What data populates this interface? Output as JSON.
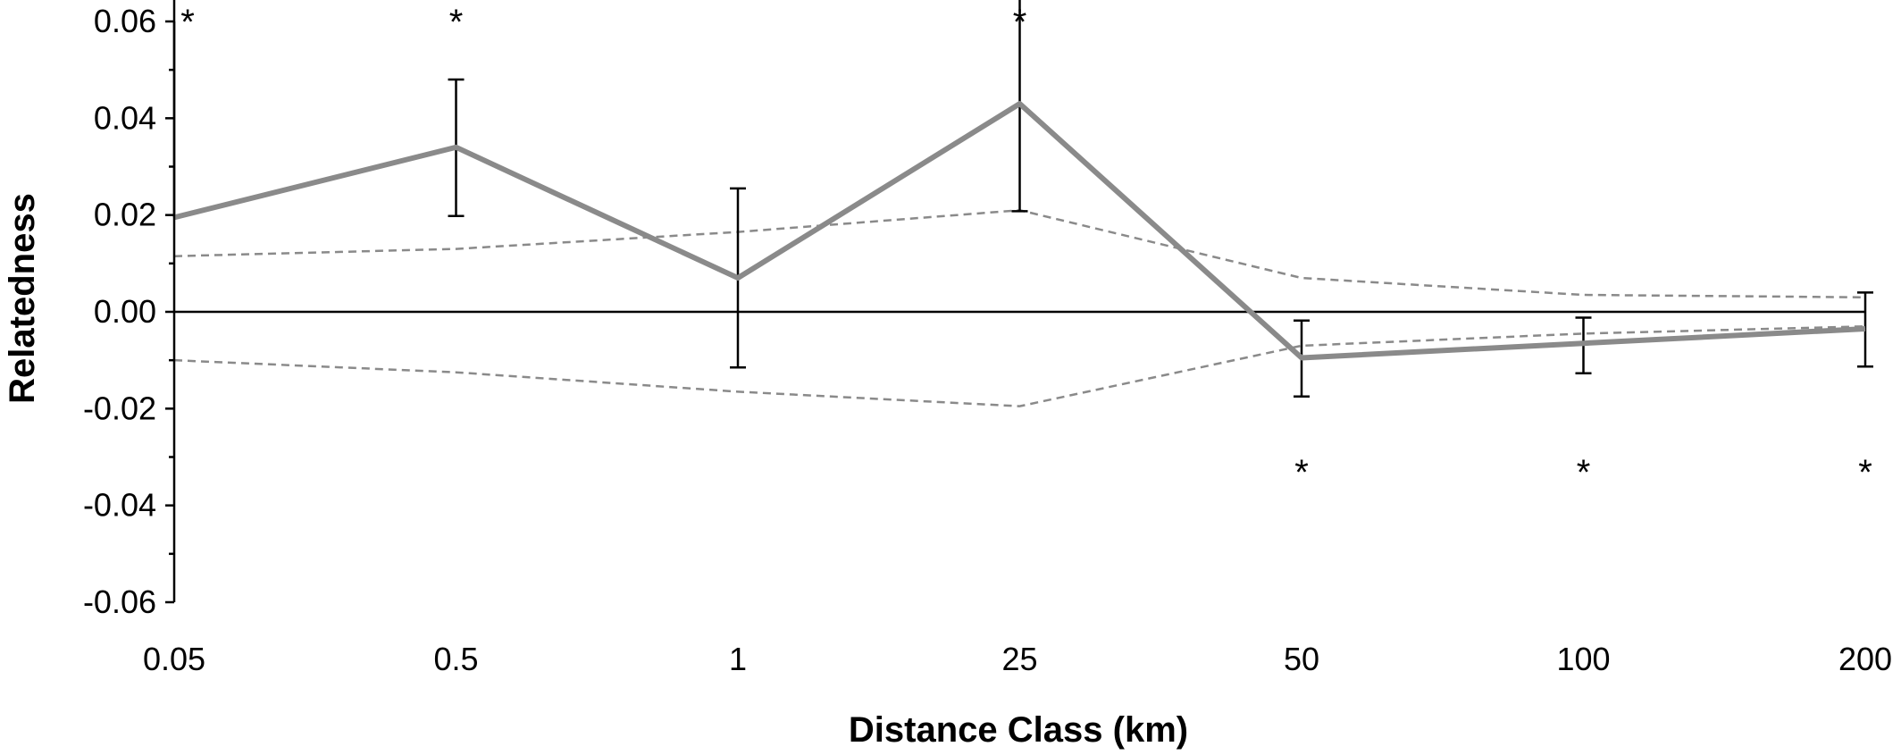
{
  "chart_data": {
    "type": "line",
    "title": "",
    "xlabel": "Distance Class (km)",
    "ylabel": "Relatedness",
    "categories": [
      "0.05",
      "0.5",
      "1",
      "25",
      "50",
      "100",
      "200"
    ],
    "ylim": [
      -0.06,
      0.06
    ],
    "yticks": [
      -0.06,
      -0.04,
      -0.02,
      0.0,
      0.02,
      0.04,
      0.06
    ],
    "ytick_labels": [
      "-0.06",
      "-0.04",
      "-0.02",
      "0.00",
      "0.02",
      "0.04",
      "0.06"
    ],
    "grid": false,
    "legend": "none",
    "series": [
      {
        "role": "observed",
        "style": "solid",
        "color": "#8a8a8a",
        "values": [
          0.0195,
          0.034,
          0.007,
          0.043,
          -0.0095,
          -0.0065,
          -0.0035
        ],
        "error_upper": [
          0.066,
          0.048,
          0.0255,
          0.0655,
          -0.0018,
          -0.0012,
          0.004
        ],
        "error_lower": [
          null,
          0.0198,
          -0.0115,
          0.0208,
          -0.0175,
          -0.0127,
          -0.0113
        ]
      },
      {
        "role": "upper-confidence",
        "style": "dashed",
        "color": "#8a8a8a",
        "values": [
          0.0115,
          0.013,
          0.0165,
          0.021,
          0.007,
          0.0035,
          0.003
        ]
      },
      {
        "role": "lower-confidence",
        "style": "dashed",
        "color": "#8a8a8a",
        "values": [
          -0.01,
          -0.0125,
          -0.0165,
          -0.0195,
          -0.007,
          -0.0045,
          -0.003
        ]
      }
    ],
    "significance": [
      {
        "index": 0,
        "label": "*",
        "position": "top"
      },
      {
        "index": 1,
        "label": "*",
        "position": "top"
      },
      {
        "index": 3,
        "label": "*",
        "position": "top"
      },
      {
        "index": 4,
        "label": "*",
        "position": "bottom"
      },
      {
        "index": 5,
        "label": "*",
        "position": "bottom"
      },
      {
        "index": 6,
        "label": "*",
        "position": "bottom"
      }
    ]
  }
}
